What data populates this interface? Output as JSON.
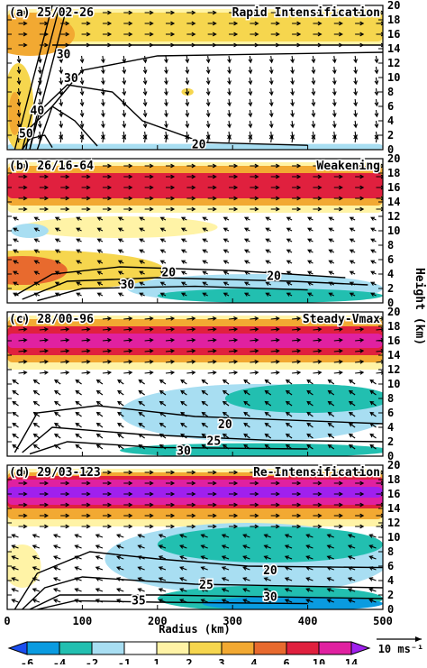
{
  "chart_data": [
    {
      "type": "contour",
      "title": "(a) 25/02-26",
      "subtitle": "Rapid Intensification",
      "ylim": [
        0,
        20
      ],
      "yticks": [
        0,
        2,
        4,
        6,
        8,
        10,
        12,
        14,
        16,
        18,
        20
      ],
      "contour_labels": [
        30,
        30,
        40,
        50,
        20
      ]
    },
    {
      "type": "contour",
      "title": "(b) 26/16-64",
      "subtitle": "Weakening",
      "ylim": [
        0,
        20
      ],
      "yticks": [
        0,
        2,
        4,
        6,
        8,
        10,
        12,
        14,
        16,
        18,
        20
      ],
      "contour_labels": [
        20,
        20,
        30
      ]
    },
    {
      "type": "contour",
      "title": "(c) 28/00-96",
      "subtitle": "Steady-Vmax",
      "ylim": [
        0,
        20
      ],
      "yticks": [
        0,
        2,
        4,
        6,
        8,
        10,
        12,
        14,
        16,
        18,
        20
      ],
      "contour_labels": [
        20,
        25,
        30
      ]
    },
    {
      "type": "contour",
      "title": "(d) 29/03-123",
      "subtitle": "Re-Intensification",
      "ylim": [
        0,
        20
      ],
      "yticks": [
        0,
        2,
        4,
        6,
        8,
        10,
        12,
        14,
        16,
        18,
        20
      ],
      "contour_labels": [
        20,
        25,
        30,
        35
      ]
    }
  ],
  "x_axis": {
    "label": "Radius (km)",
    "xlim": [
      0,
      500
    ],
    "xticks": [
      0,
      100,
      200,
      300,
      400,
      500
    ]
  },
  "y_axis_label": "Height (km)",
  "colorbar": {
    "levels": [
      -6,
      -4,
      -2,
      -1,
      1,
      2,
      3,
      4,
      6,
      10,
      14
    ],
    "colors": [
      "#1a4ef0",
      "#0a9be0",
      "#22bfb0",
      "#a8def2",
      "#ffffff",
      "#fff3a6",
      "#f6d64e",
      "#f2a932",
      "#e86a2e",
      "#e0203e",
      "#e021a0",
      "#a020ee"
    ],
    "unit": "10 ms⁻¹"
  }
}
